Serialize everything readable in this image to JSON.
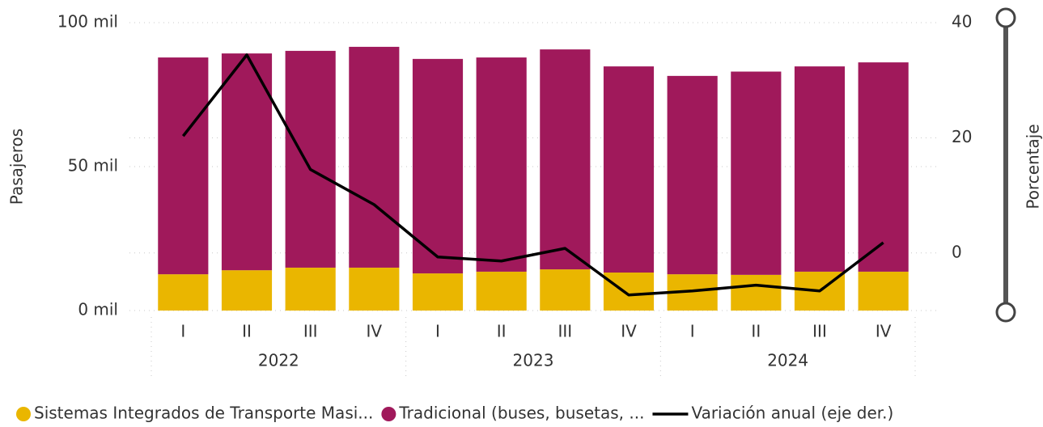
{
  "chart_data": {
    "type": "stacked_bar_line",
    "categories": [
      "I",
      "II",
      "III",
      "IV",
      "I",
      "II",
      "III",
      "IV",
      "I",
      "II",
      "III",
      "IV"
    ],
    "groups": [
      {
        "label": "2022",
        "count": 4
      },
      {
        "label": "2023",
        "count": 4
      },
      {
        "label": "2024",
        "count": 4
      }
    ],
    "series": [
      {
        "name": "Sistemas Integrados de Transporte Masi...",
        "color": "#EAB600",
        "values": [
          12.6,
          14.0,
          14.9,
          14.9,
          12.9,
          13.5,
          14.3,
          13.2,
          12.6,
          12.4,
          13.5,
          13.5
        ]
      },
      {
        "name": "Tradicional (buses, busetas, ...",
        "color": "#A0195B",
        "values": [
          75.3,
          75.3,
          75.3,
          76.7,
          74.5,
          74.4,
          76.4,
          71.6,
          68.9,
          70.6,
          71.3,
          72.7
        ]
      },
      {
        "name": "Variación anual (eje der.)",
        "color": "#000000",
        "axis": "y2",
        "values": [
          20.3,
          34.4,
          14.5,
          8.4,
          -0.7,
          -1.4,
          0.8,
          -7.3,
          -6.6,
          -5.6,
          -6.6,
          1.8
        ]
      }
    ],
    "ylabel": "Pasajeros",
    "y2label": "Porcentaje",
    "ylim": [
      0,
      100
    ],
    "yticks": [
      {
        "value": 0,
        "label": "0 mil"
      },
      {
        "value": 50,
        "label": "50 mil"
      },
      {
        "value": 100,
        "label": "100 mil"
      }
    ],
    "y2lim": [
      -10,
      40
    ],
    "y2ticks": [
      0,
      20,
      40
    ],
    "grid": true,
    "legend": "bottom"
  }
}
